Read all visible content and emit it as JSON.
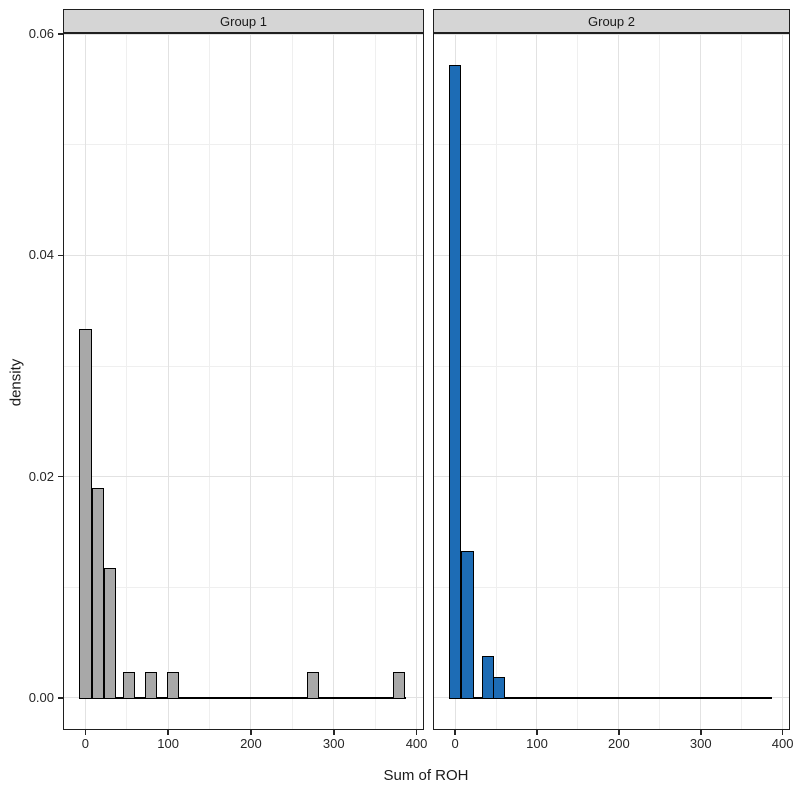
{
  "figure": {
    "background": "#ffffff",
    "text_color": "#1a1a1a",
    "panel_border_color": "#1f1f1f",
    "strip_background": "#d5d5d5",
    "strip_border_color": "#1f1f1f",
    "grid_major_color": "#e2e2e2",
    "grid_minor_color": "#efefef",
    "bar_outline_color": "#000000"
  },
  "chart_data": {
    "type": "bar",
    "subtype": "faceted-histogram",
    "title": "",
    "xlabel": "Sum of ROH",
    "ylabel": "density",
    "legend": "none",
    "grid": "on",
    "binwidth": 15,
    "xlim": [
      -27,
      409
    ],
    "ylim": [
      -0.0029,
      0.0601
    ],
    "x_ticks": [
      0,
      100,
      200,
      300,
      400
    ],
    "x_minor": [
      50,
      150,
      250,
      350
    ],
    "y_ticks": [
      "0.00",
      "0.02",
      "0.04",
      "0.06"
    ],
    "y_minor": [
      0.01,
      0.03,
      0.05
    ],
    "zero_line": {
      "x_start": -7.5,
      "x_end": 387
    },
    "facets": [
      {
        "label": "Group 1",
        "fill": "#a8a8a8",
        "bars": [
          {
            "center": 0,
            "density": 0.0333
          },
          {
            "center": 15,
            "density": 0.0189
          },
          {
            "center": 30,
            "density": 0.0117
          },
          {
            "center": 52.5,
            "density": 0.0023
          },
          {
            "center": 79,
            "density": 0.0023
          },
          {
            "center": 106,
            "density": 0.0023
          },
          {
            "center": 275,
            "density": 0.0023
          },
          {
            "center": 379,
            "density": 0.0023
          }
        ]
      },
      {
        "label": "Group 2",
        "fill": "#1d6cb5",
        "bars": [
          {
            "center": 0,
            "density": 0.0571
          },
          {
            "center": 15,
            "density": 0.0132
          },
          {
            "center": 40,
            "density": 0.0037
          },
          {
            "center": 54,
            "density": 0.0018
          }
        ]
      }
    ]
  }
}
